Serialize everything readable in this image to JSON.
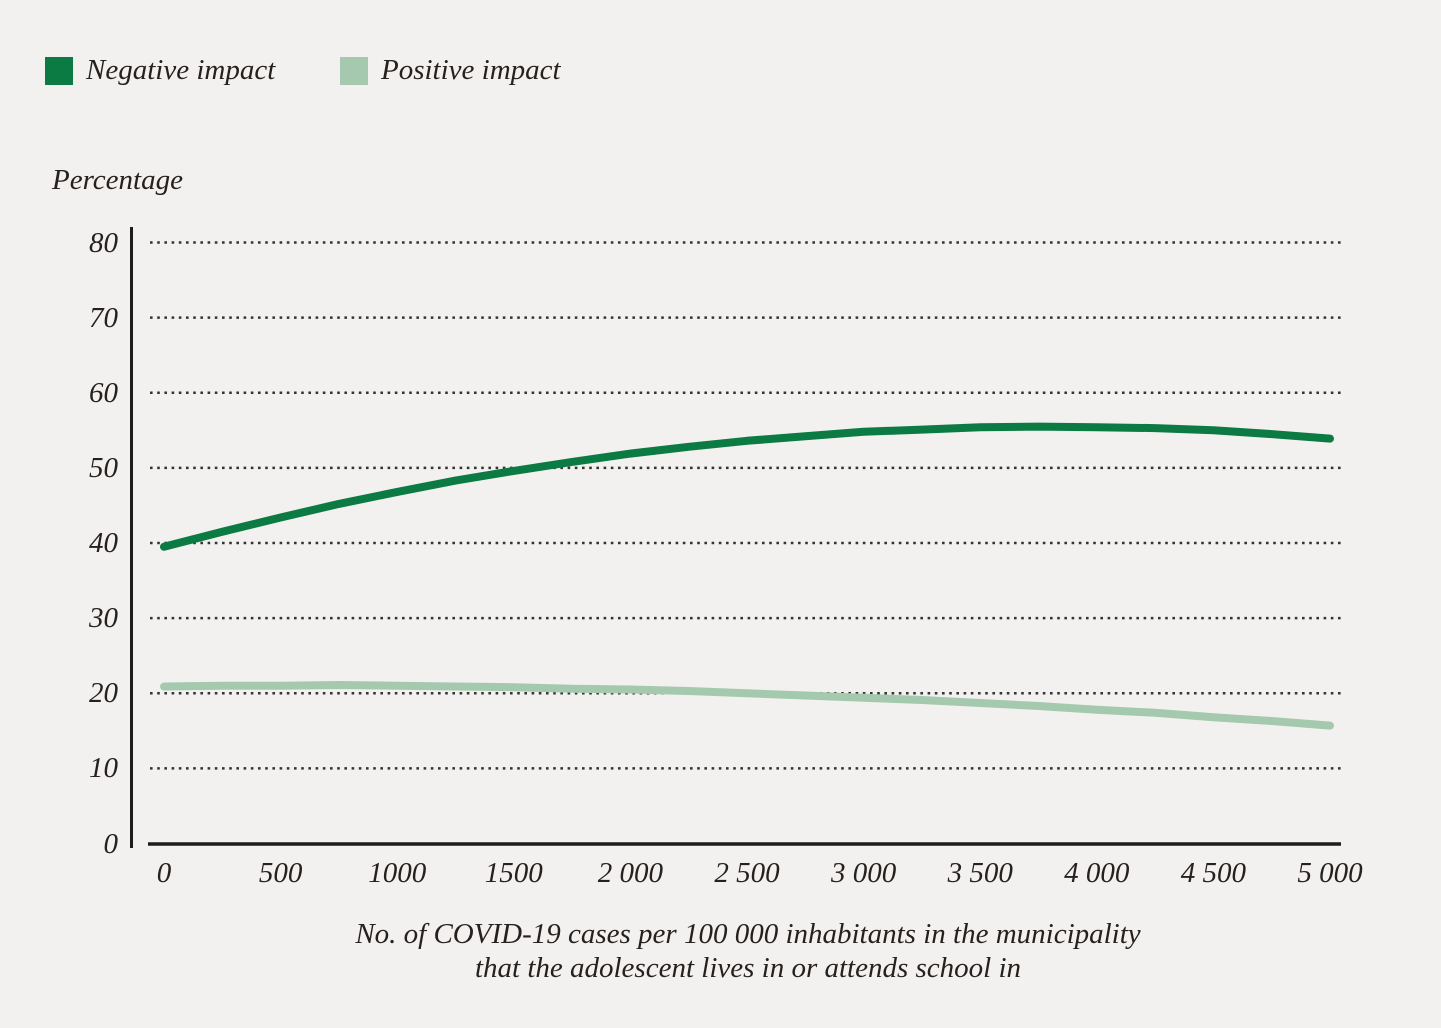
{
  "page": {
    "background_color": "#f2f1ef",
    "text_color": "#26211e",
    "axis_color": "#1c1c1c",
    "gridline_color": "#343434"
  },
  "legend": {
    "items": [
      {
        "label": "Negative impact",
        "color": "#0c7a43"
      },
      {
        "label": "Positive impact",
        "color": "#a5c9ae"
      }
    ]
  },
  "y_axis": {
    "title": "Percentage",
    "tick_labels": [
      "80",
      "70",
      "60",
      "50",
      "40",
      "30",
      "20",
      "10",
      "0"
    ],
    "tick_values": [
      80,
      70,
      60,
      50,
      40,
      30,
      20,
      10,
      0
    ]
  },
  "x_axis": {
    "tick_labels": [
      "0",
      "500",
      "1000",
      "1500",
      "2 000",
      "2 500",
      "3 000",
      "3 500",
      "4 000",
      "4 500",
      "5 000"
    ],
    "tick_values": [
      0,
      500,
      1000,
      1500,
      2000,
      2500,
      3000,
      3500,
      4000,
      4500,
      5000
    ],
    "title_line1": "No. of COVID-19 cases per 100 000 inhabitants in the municipality",
    "title_line2": "that the adolescent lives in or attends school in"
  },
  "chart_data": {
    "type": "line",
    "title": "",
    "ylabel": "Percentage",
    "xlabel": "No. of COVID-19 cases per 100 000 inhabitants in the municipality that the adolescent lives in or attends school in",
    "xlim": [
      0,
      5000
    ],
    "ylim": [
      0,
      80
    ],
    "grid": "horizontal-dotted",
    "legend_position": "top-left",
    "x": [
      0,
      250,
      500,
      750,
      1000,
      1250,
      1500,
      1750,
      2000,
      2250,
      2500,
      2750,
      3000,
      3250,
      3500,
      3750,
      4000,
      4250,
      4500,
      4750,
      5000
    ],
    "series": [
      {
        "name": "Negative impact",
        "color": "#0c7a43",
        "values": [
          39.5,
          41.5,
          43.4,
          45.2,
          46.8,
          48.3,
          49.6,
          50.8,
          51.9,
          52.8,
          53.6,
          54.2,
          54.8,
          55.1,
          55.4,
          55.5,
          55.4,
          55.3,
          55.0,
          54.5,
          53.9
        ]
      },
      {
        "name": "Positive impact",
        "color": "#a5c9ae",
        "values": [
          20.9,
          21.0,
          21.0,
          21.1,
          21.0,
          20.9,
          20.8,
          20.6,
          20.5,
          20.3,
          20.0,
          19.7,
          19.4,
          19.1,
          18.7,
          18.3,
          17.8,
          17.4,
          16.8,
          16.3,
          15.7
        ]
      }
    ]
  }
}
